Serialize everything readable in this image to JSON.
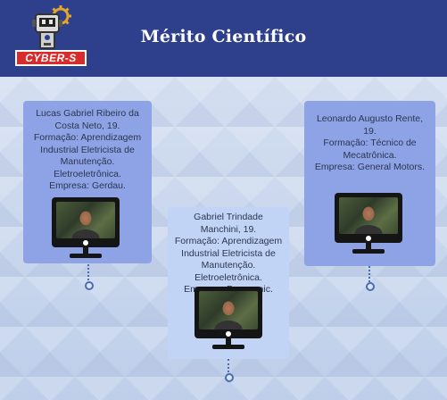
{
  "header": {
    "title": "Mérito Científico",
    "logo_text": "CYBER-S"
  },
  "cards": [
    {
      "lines": [
        "Lucas Gabriel Ribeiro da",
        "Costa Neto, 19.",
        "Formação:  Aprendizagem",
        "Industrial Eletricista de",
        "Manutenção.",
        "Eletroeletrônica.",
        "Empresa: Gerdau."
      ]
    },
    {
      "lines": [
        "Gabriel Trindade Manchini, 19.",
        "Formação: Aprendizagem",
        "Industrial Eletricista de",
        "Manutenção. Eletroeletrônica.",
        "Empresa: Panasonic."
      ]
    },
    {
      "lines": [
        "Leonardo Augusto Rente, 19.",
        "Formação:  Técnico de",
        "Mecatrônica.",
        "Empresa: General Motors."
      ]
    }
  ],
  "colors": {
    "header": "#2e3f8c",
    "card_dark": "#8ea3e6",
    "card_light": "#c2d4f5",
    "logo_red": "#d82c2c",
    "timeline": "#4a6bb6"
  }
}
